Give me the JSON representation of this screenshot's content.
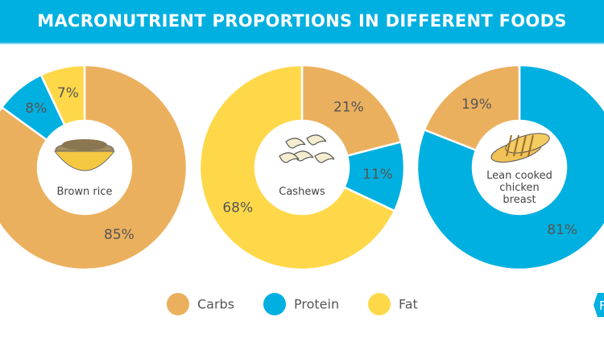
{
  "header": {
    "title": "MACRONUTRIENT PROPORTIONS IN DIFFERENT FOODS"
  },
  "colors": {
    "Carbs": "#EBB05E",
    "Protein": "#00B0E0",
    "Fat": "#FFD84A",
    "header": "#00B0E0"
  },
  "chart_data": [
    {
      "type": "pie",
      "donut": true,
      "food": "Brown rice",
      "icon": "rice-bowl-icon",
      "slices": [
        {
          "category": "Carbs",
          "value": 85,
          "label": "85%"
        },
        {
          "category": "Protein",
          "value": 8,
          "label": "8%"
        },
        {
          "category": "Fat",
          "value": 7,
          "label": "7%"
        }
      ]
    },
    {
      "type": "pie",
      "donut": true,
      "food": "Cashews",
      "icon": "cashews-icon",
      "slices": [
        {
          "category": "Carbs",
          "value": 21,
          "label": "21%"
        },
        {
          "category": "Protein",
          "value": 11,
          "label": "11%"
        },
        {
          "category": "Fat",
          "value": 68,
          "label": "68%"
        }
      ]
    },
    {
      "type": "pie",
      "donut": true,
      "food": "Lean cooked chicken breast",
      "food_lines": [
        "Lean cooked",
        "chicken",
        "breast"
      ],
      "icon": "chicken-breast-icon",
      "slices": [
        {
          "category": "Protein",
          "value": 81,
          "label": "81%"
        },
        {
          "category": "Carbs",
          "value": 19,
          "label": "19%"
        }
      ]
    }
  ],
  "legend": [
    {
      "label": "Carbs"
    },
    {
      "label": "Protein"
    },
    {
      "label": "Fat"
    }
  ],
  "logo": {
    "letter": "F"
  }
}
